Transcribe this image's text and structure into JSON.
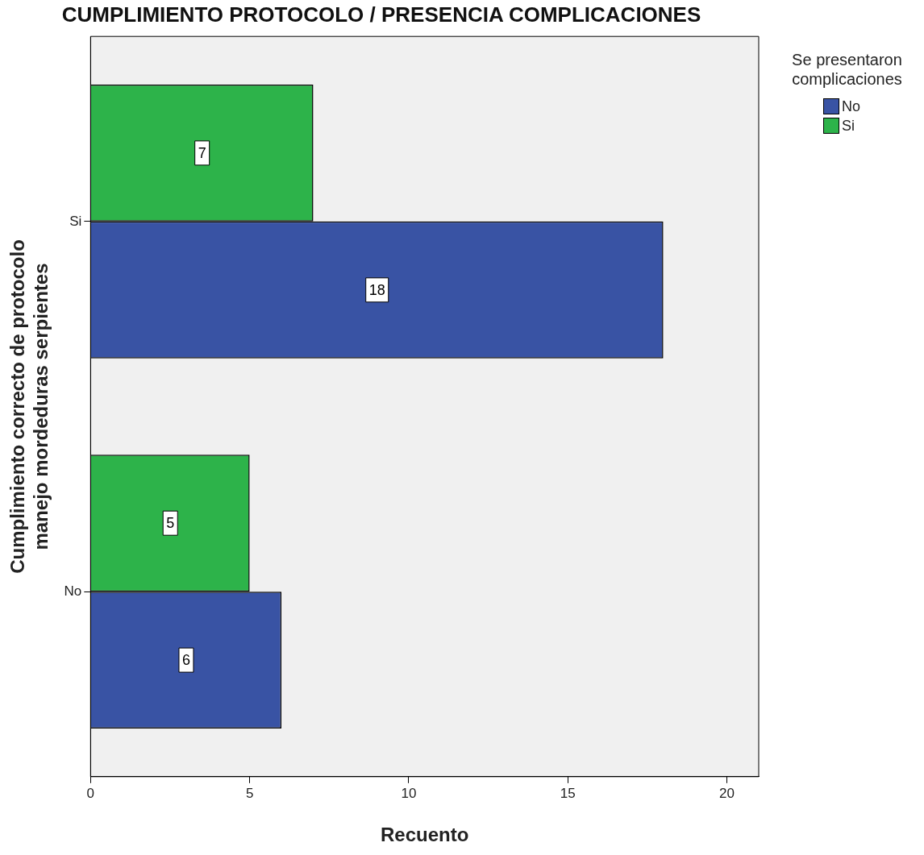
{
  "chart_data": {
    "type": "bar",
    "orientation": "horizontal",
    "title": "CUMPLIMIENTO PROTOCOLO / PRESENCIA COMPLICACIONES",
    "xlabel": "Recuento",
    "ylabel": "Cumplimiento correcto de protocolo manejo mordeduras serpientes",
    "legend_title": "Se presentaron complicaciones",
    "legend": "top right",
    "categories": [
      "Si",
      "No"
    ],
    "series": [
      {
        "name": "No",
        "color": "#3953a4",
        "values": [
          18,
          6
        ]
      },
      {
        "name": "Si",
        "color": "#2db34a",
        "values": [
          7,
          5
        ]
      }
    ],
    "xlim": [
      0,
      21
    ],
    "xticks": [
      0,
      5,
      10,
      15,
      20
    ],
    "data_labels": true
  }
}
